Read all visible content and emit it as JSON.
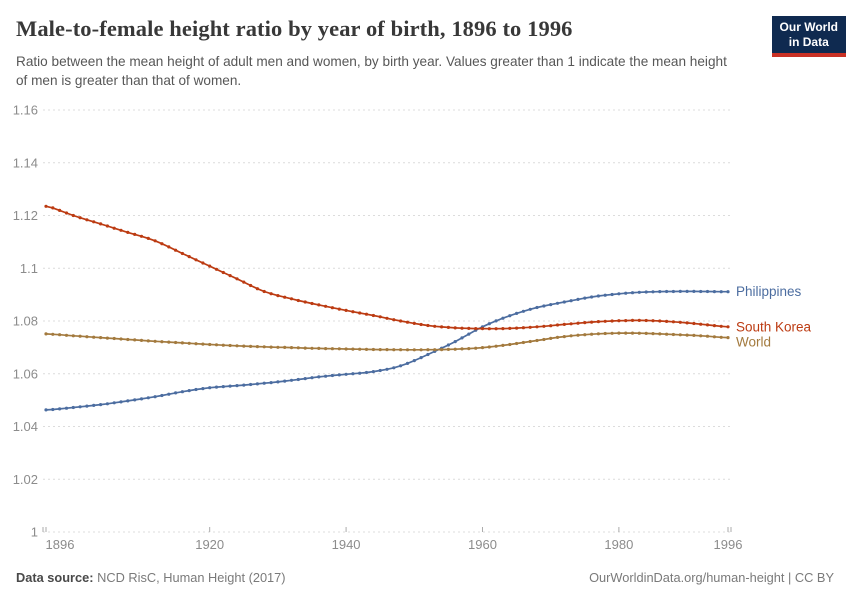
{
  "header": {
    "title": "Male-to-female height ratio by year of birth, 1896 to 1996",
    "subtitle": "Ratio between the mean height of adult men and women, by birth year. Values greater than 1 indicate the mean height of men is greater than that of women.",
    "logo": {
      "line1": "Our World",
      "line2": "in Data",
      "bg_color": "#0f2a50",
      "accent_color": "#c93125"
    }
  },
  "chart_data": {
    "type": "line",
    "title": "Male-to-female height ratio by year of birth, 1896 to 1996",
    "xlabel": "",
    "ylabel": "",
    "xlim": [
      1896,
      1996
    ],
    "ylim": [
      1,
      1.16
    ],
    "x_ticks": [
      1896,
      1920,
      1940,
      1960,
      1980,
      1996
    ],
    "y_ticks": [
      1,
      1.02,
      1.04,
      1.06,
      1.08,
      1.1,
      1.12,
      1.14,
      1.16
    ],
    "grid": "horizontal-dashed",
    "legend_position": "end-of-line-labels",
    "marker": "point-per-year",
    "x_start": 1896,
    "x_step": 4,
    "series": [
      {
        "name": "Philippines",
        "color": "#4c6da0",
        "values": [
          1.0463,
          1.0472,
          1.0483,
          1.0497,
          1.0513,
          1.0532,
          1.0547,
          1.0555,
          1.0564,
          1.0575,
          1.0588,
          1.0598,
          1.0608,
          1.063,
          1.0673,
          1.0722,
          1.0778,
          1.082,
          1.0851,
          1.0872,
          1.0891,
          1.0903,
          1.091,
          1.0912,
          1.0912,
          1.0911
        ]
      },
      {
        "name": "South Korea",
        "color": "#bc3b12",
        "values": [
          1.1235,
          1.12,
          1.1168,
          1.1136,
          1.1104,
          1.1056,
          1.1008,
          1.096,
          1.0912,
          1.0884,
          1.0861,
          1.084,
          1.0821,
          1.08,
          1.0783,
          1.0774,
          1.0771,
          1.0772,
          1.0778,
          1.0787,
          1.0796,
          1.0801,
          1.0802,
          1.0797,
          1.0788,
          1.0778
        ]
      },
      {
        "name": "World",
        "color": "#a37a3e",
        "values": [
          1.0751,
          1.0744,
          1.0737,
          1.073,
          1.0723,
          1.0717,
          1.0711,
          1.0706,
          1.0702,
          1.0699,
          1.0696,
          1.0694,
          1.0692,
          1.0691,
          1.0691,
          1.0693,
          1.0699,
          1.0711,
          1.0726,
          1.0741,
          1.075,
          1.0754,
          1.0753,
          1.0749,
          1.0744,
          1.0737
        ]
      }
    ]
  },
  "footer": {
    "data_source_label": "Data source:",
    "data_source_value": "NCD RisC, Human Height (2017)",
    "license": "OurWorldinData.org/human-height | CC BY"
  }
}
